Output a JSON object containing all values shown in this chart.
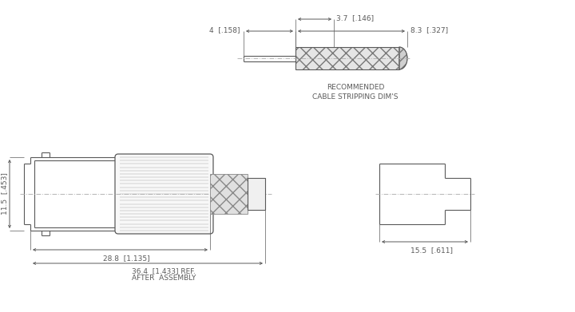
{
  "bg_color": "#ffffff",
  "line_color": "#5a5a5a",
  "dim_color": "#5a5a5a",
  "centerline_color": "#888888",
  "font_size": 6.5,
  "top_view": {
    "note1": "RECOMMENDED",
    "note2": "CABLE STRIPPING DIM'S",
    "dim_37": "3.7  [.146]",
    "dim_4": "4  [.158]",
    "dim_83": "8.3  [.327]"
  },
  "main_view": {
    "dim_115": "11.5  [.453]",
    "dim_288": "28.8  [1.135]",
    "dim_364": "36.4  [1.433] REF.",
    "dim_after": "AFTER  ASSEMBLY"
  },
  "side_view": {
    "dim_155": "15.5  [.611]"
  }
}
